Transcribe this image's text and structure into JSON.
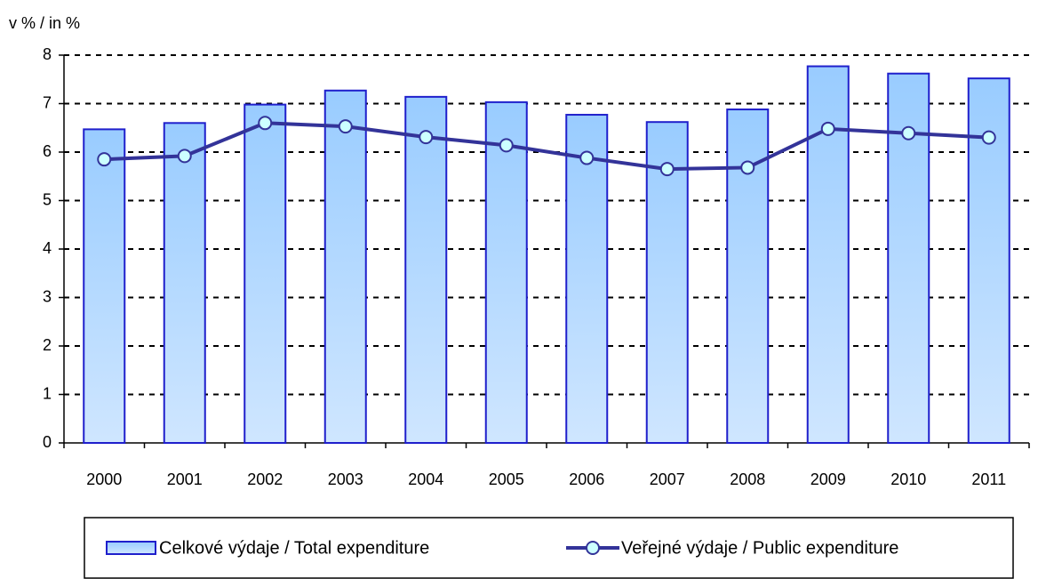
{
  "chart_data": {
    "type": "bar_line",
    "ylabel": "v % / in %",
    "categories": [
      "2000",
      "2001",
      "2002",
      "2003",
      "2004",
      "2005",
      "2006",
      "2007",
      "2008",
      "2009",
      "2010",
      "2011"
    ],
    "series": [
      {
        "name": "Celkové výdaje / Total expenditure",
        "type": "bar",
        "color": "#99ccff",
        "edge": "#1f1fcc",
        "values": [
          6.47,
          6.6,
          6.98,
          7.27,
          7.14,
          7.03,
          6.77,
          6.62,
          6.88,
          7.77,
          7.62,
          7.52
        ]
      },
      {
        "name": "Veřejné výdaje / Public expenditure",
        "type": "line",
        "color": "#333399",
        "marker": "#ccffff",
        "values": [
          5.85,
          5.92,
          6.6,
          6.53,
          6.31,
          6.14,
          5.88,
          5.65,
          5.68,
          6.48,
          6.39,
          6.3
        ]
      }
    ],
    "ylim": [
      0,
      8
    ],
    "yticks": [
      0,
      1,
      2,
      3,
      4,
      5,
      6,
      7,
      8
    ],
    "grid": true
  }
}
